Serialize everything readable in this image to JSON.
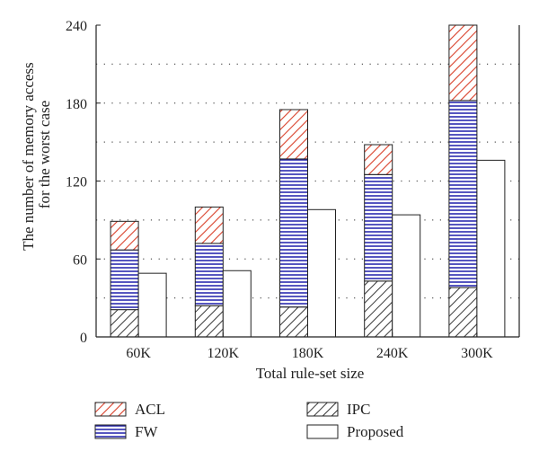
{
  "chart_data": {
    "type": "bar",
    "categories": [
      "60K",
      "120K",
      "180K",
      "240K",
      "300K"
    ],
    "stacked_series": [
      {
        "name": "IPC",
        "values": [
          21,
          24,
          23,
          43,
          38
        ],
        "pattern": "diag-black"
      },
      {
        "name": "FW",
        "values": [
          46,
          48,
          114,
          82,
          144
        ],
        "pattern": "hstripe-blue"
      },
      {
        "name": "ACL",
        "values": [
          22,
          28,
          38,
          23,
          58
        ],
        "pattern": "diag-red"
      }
    ],
    "side_series": [
      {
        "name": "Proposed",
        "values": [
          49,
          51,
          98,
          94,
          136
        ],
        "fill": "#ffffff"
      }
    ],
    "xlabel": "Total rule-set size",
    "ylabel_lines": [
      "The number of memory access",
      "for the worst case"
    ],
    "ylim": [
      0,
      240
    ],
    "yticks": [
      0,
      60,
      120,
      180,
      240
    ],
    "grid": "dotted horizontal",
    "legend": {
      "placement": "bottom",
      "items": [
        {
          "name": "ACL",
          "pattern": "diag-red"
        },
        {
          "name": "IPC",
          "pattern": "diag-black"
        },
        {
          "name": "FW",
          "pattern": "hstripe-blue"
        },
        {
          "name": "Proposed",
          "pattern": "white"
        }
      ]
    },
    "colors": {
      "acl": "#d9402a",
      "fw": "#2b2bb0",
      "ipc": "#222222",
      "axis": "#222222"
    }
  }
}
